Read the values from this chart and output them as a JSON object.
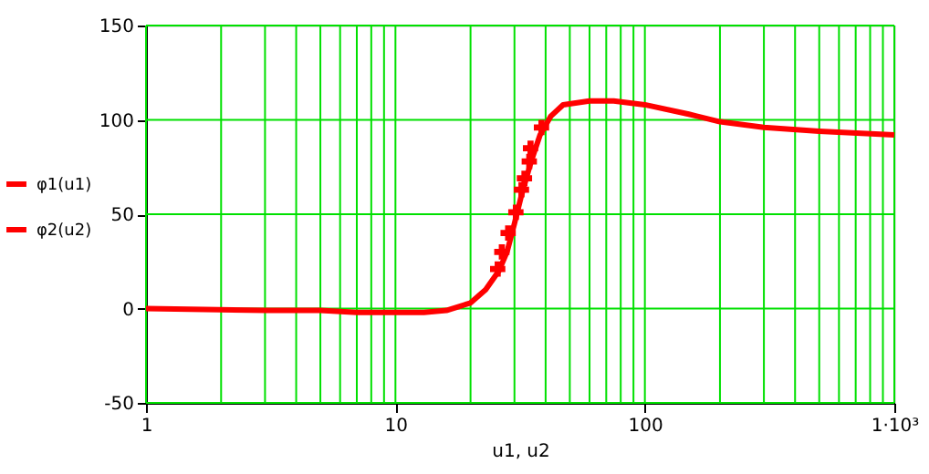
{
  "chart_data": {
    "type": "line",
    "xlabel": "u1, u2",
    "log": "x",
    "grid": true,
    "legend": "left",
    "xlim": [
      1,
      1000
    ],
    "xticks": [
      1,
      10,
      100,
      {
        "value": 1000,
        "label": "1·10³"
      }
    ],
    "ylim": [
      -50,
      150
    ],
    "yticks": [
      -50,
      0,
      50,
      100,
      150
    ],
    "series": [
      {
        "name": "φ1(u1)",
        "marker": "none",
        "color": "#ff0000",
        "x": [
          1,
          3,
          5,
          7,
          10,
          13,
          16,
          20,
          23,
          26,
          28,
          30,
          32,
          35,
          38,
          42,
          47,
          60,
          75,
          100,
          150,
          200,
          300,
          500,
          1000
        ],
        "values": [
          0,
          -1,
          -1,
          -2,
          -2,
          -2,
          -1,
          3,
          10,
          20,
          30,
          45,
          60,
          78,
          92,
          102,
          108,
          110,
          110,
          108,
          103,
          99,
          96,
          94,
          92
        ]
      },
      {
        "name": "φ2(u2)",
        "type": "scatter",
        "marker": "cross",
        "color": "#ff0000",
        "x": [
          25.7,
          26.7,
          28.3,
          30.4,
          32,
          32.9,
          34.4,
          34.8,
          38.5
        ],
        "values": [
          21,
          30,
          40,
          51,
          63,
          69,
          78,
          85,
          96
        ]
      }
    ]
  }
}
